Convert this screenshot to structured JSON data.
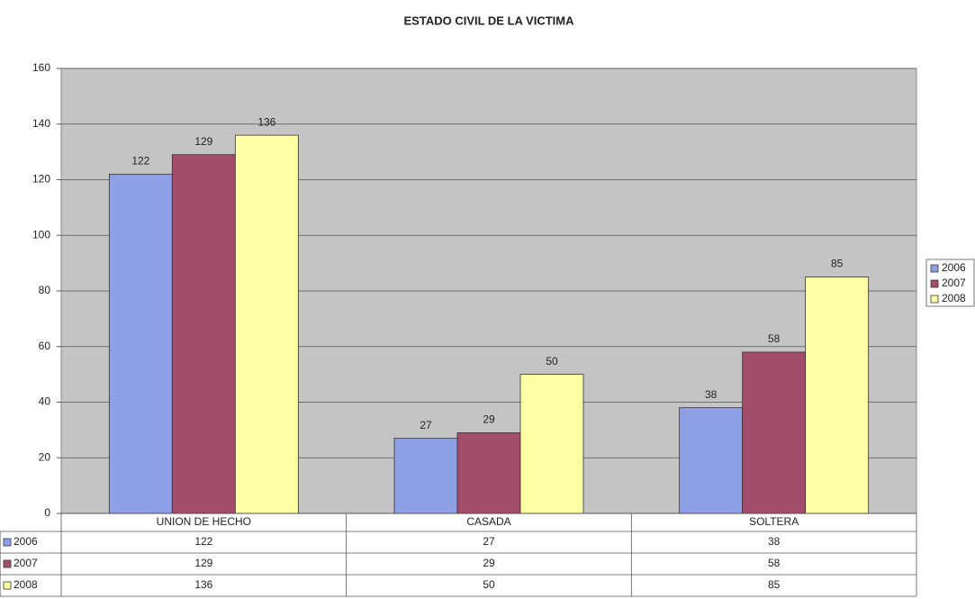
{
  "chart_data": {
    "type": "bar",
    "title": "ESTADO CIVIL DE LA VICTIMA",
    "categories": [
      "UNION DE HECHO",
      "CASADA",
      "SOLTERA"
    ],
    "series": [
      {
        "name": "2006",
        "color": "#8f9fe6",
        "values": [
          122,
          27,
          38
        ]
      },
      {
        "name": "2007",
        "color": "#a34c6c",
        "values": [
          129,
          29,
          58
        ]
      },
      {
        "name": "2008",
        "color": "#ffffa6",
        "values": [
          136,
          50,
          85
        ]
      }
    ],
    "ylim": [
      0,
      160
    ],
    "yticks": [
      0,
      20,
      40,
      60,
      80,
      100,
      120,
      140,
      160
    ],
    "grid": true
  }
}
